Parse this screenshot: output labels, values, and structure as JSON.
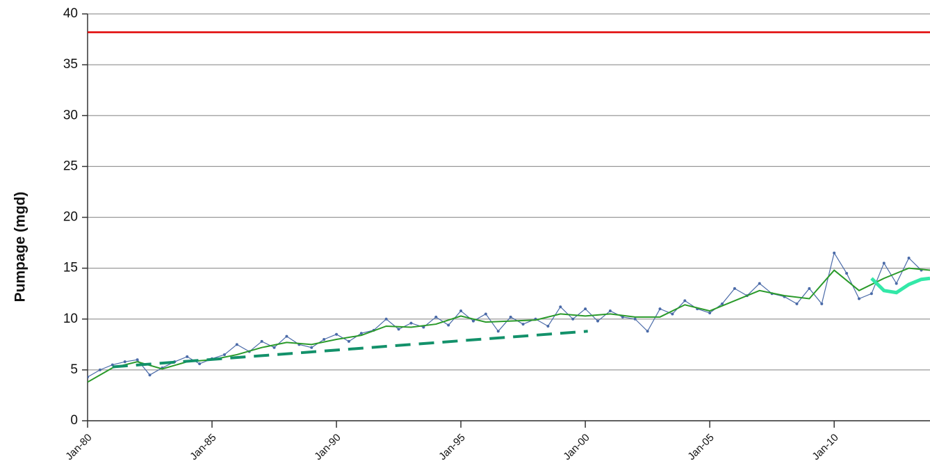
{
  "chart_data": {
    "type": "line",
    "y_label": "Pumpage (mgd)",
    "xlim": [
      1980,
      2013.85
    ],
    "xticks": [
      {
        "value": 1980,
        "label": "Jan-80"
      },
      {
        "value": 1985,
        "label": "Jan-85"
      },
      {
        "value": 1990,
        "label": "Jan-90"
      },
      {
        "value": 1995,
        "label": "Jan-95"
      },
      {
        "value": 2000,
        "label": "Jan-00"
      },
      {
        "value": 2005,
        "label": "Jan-05"
      },
      {
        "value": 2010,
        "label": "Jan-10"
      }
    ],
    "ylim": [
      0,
      40
    ],
    "yticks": [
      0,
      5,
      10,
      15,
      20,
      25,
      30,
      35,
      40
    ],
    "grid": true,
    "series": [
      {
        "color": "#e00000",
        "width": 2.5,
        "x": [
          1980,
          2013.85
        ],
        "values": [
          38.2,
          38.2
        ]
      },
      {
        "color": "#4a6aa8",
        "width": 1.2,
        "markers": true,
        "x": [
          1980,
          1980.5,
          1981,
          1981.5,
          1982,
          1982.5,
          1983,
          1983.5,
          1984,
          1984.5,
          1985,
          1985.5,
          1986,
          1986.5,
          1987,
          1987.5,
          1988,
          1988.5,
          1989,
          1989.5,
          1990,
          1990.5,
          1991,
          1991.5,
          1992,
          1992.5,
          1993,
          1993.5,
          1994,
          1994.5,
          1995,
          1995.5,
          1996,
          1996.5,
          1997,
          1997.5,
          1998,
          1998.5,
          1999,
          1999.5,
          2000,
          2000.5,
          2001,
          2001.5,
          2002,
          2002.5,
          2003,
          2003.5,
          2004,
          2004.5,
          2005,
          2005.5,
          2006,
          2006.5,
          2007,
          2007.5,
          2008,
          2008.5,
          2009,
          2009.5,
          2010,
          2010.5,
          2011,
          2011.5,
          2012,
          2012.5,
          2013,
          2013.5
        ],
        "values": [
          4.3,
          5.0,
          5.5,
          5.8,
          6.0,
          4.5,
          5.2,
          5.8,
          6.3,
          5.6,
          6.1,
          6.5,
          7.5,
          6.8,
          7.8,
          7.2,
          8.3,
          7.5,
          7.2,
          8.0,
          8.5,
          7.8,
          8.6,
          8.9,
          10.0,
          9.0,
          9.6,
          9.2,
          10.2,
          9.4,
          10.8,
          9.8,
          10.5,
          8.8,
          10.2,
          9.5,
          10.0,
          9.3,
          11.2,
          10.0,
          11.0,
          9.8,
          10.8,
          10.2,
          10.0,
          8.8,
          11.0,
          10.5,
          11.8,
          11.0,
          10.6,
          11.5,
          13.0,
          12.3,
          13.5,
          12.5,
          12.2,
          11.5,
          13.0,
          11.5,
          16.5,
          14.5,
          12.0,
          12.5,
          15.5,
          13.5,
          16.0,
          14.8
        ]
      },
      {
        "color": "#2a9a2a",
        "width": 2,
        "x": [
          1980,
          1981,
          1982,
          1983,
          1984,
          1985,
          1986,
          1987,
          1988,
          1989,
          1990,
          1991,
          1992,
          1993,
          1994,
          1995,
          1996,
          1997,
          1998,
          1999,
          2000,
          2001,
          2002,
          2003,
          2004,
          2005,
          2006,
          2007,
          2008,
          2009,
          2010,
          2011,
          2012,
          2013,
          2013.85
        ],
        "values": [
          3.8,
          5.2,
          5.8,
          5.1,
          5.8,
          6.0,
          6.5,
          7.2,
          7.7,
          7.5,
          8.0,
          8.4,
          9.3,
          9.2,
          9.5,
          10.3,
          9.7,
          9.8,
          9.9,
          10.5,
          10.3,
          10.5,
          10.2,
          10.2,
          11.4,
          10.8,
          11.8,
          12.8,
          12.3,
          12.0,
          14.8,
          12.8,
          14.0,
          15.0,
          14.8
        ]
      },
      {
        "color": "#13916a",
        "width": 4,
        "dashed": true,
        "x": [
          1981,
          2000.1
        ],
        "values": [
          5.3,
          8.8
        ]
      },
      {
        "color": "#33e8a8",
        "width": 5,
        "x": [
          2011.5,
          2012.0,
          2012.5,
          2013.0,
          2013.5,
          2013.85
        ],
        "values": [
          14.0,
          12.8,
          12.6,
          13.4,
          13.9,
          14.0
        ]
      }
    ]
  }
}
